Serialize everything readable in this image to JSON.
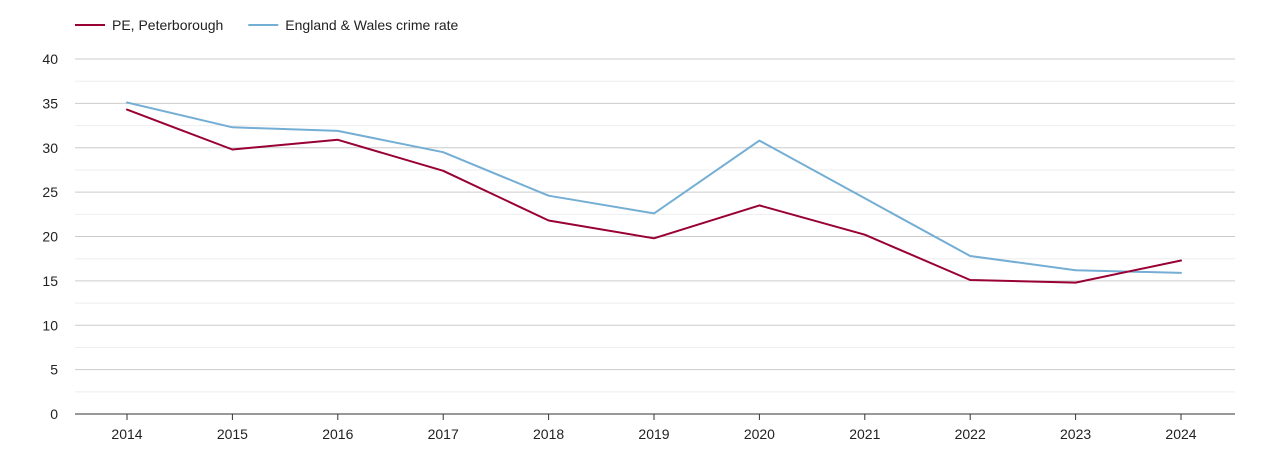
{
  "chart_data": {
    "type": "line",
    "x": [
      "2014",
      "2015",
      "2016",
      "2017",
      "2018",
      "2019",
      "2020",
      "2021",
      "2022",
      "2023",
      "2024"
    ],
    "series": [
      {
        "name": "PE, Peterborough",
        "color": "#990033",
        "values": [
          34.3,
          29.8,
          30.9,
          27.4,
          21.8,
          19.8,
          23.5,
          20.2,
          15.1,
          14.8,
          17.3
        ]
      },
      {
        "name": "England & Wales crime rate",
        "color": "#74aed4",
        "values": [
          35.1,
          32.3,
          31.9,
          29.5,
          24.6,
          22.6,
          30.8,
          24.3,
          17.8,
          16.2,
          15.9
        ]
      }
    ],
    "y_ticks": [
      "0",
      "5",
      "10",
      "15",
      "20",
      "25",
      "30",
      "35",
      "40"
    ],
    "ylim": [
      0,
      40
    ],
    "grid": true,
    "legend": "top-left",
    "title": "",
    "xlabel": "",
    "ylabel": ""
  }
}
